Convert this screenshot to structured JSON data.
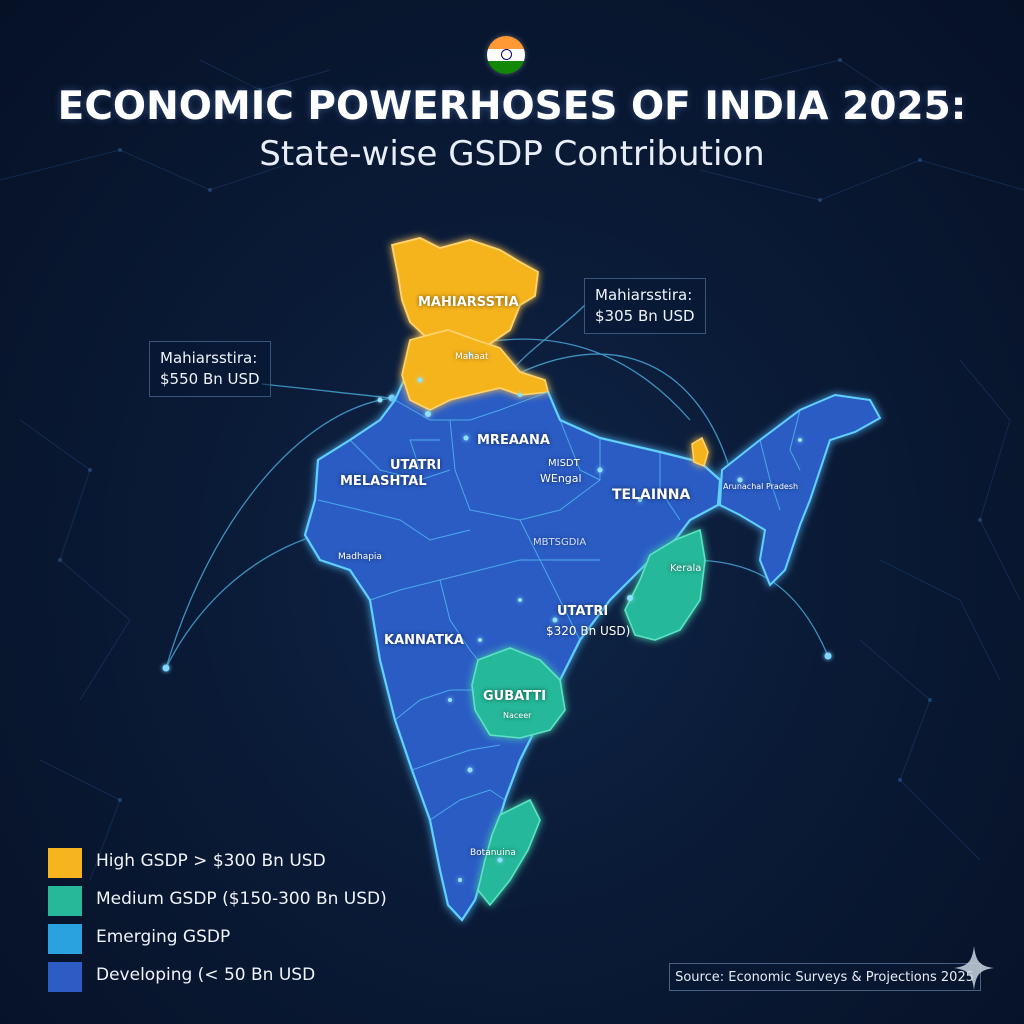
{
  "title": "ECONOMIC POWERHOSES OF INDIA 2025:",
  "subtitle": "State-wise GSDP Contribution",
  "colors": {
    "high": "#f6b41e",
    "medium": "#27b89a",
    "emerging": "#2aa2e0",
    "developing": "#2c5cc4",
    "background": "#0a1a36",
    "border_glow": "#58c8ff"
  },
  "icons": {
    "flag": "india-flag-icon",
    "sparkle": "sparkle-icon"
  },
  "map_labels": [
    {
      "id": "north",
      "text": "MAHIARSSTIA"
    },
    {
      "id": "north-small",
      "text": "Mahaat"
    },
    {
      "id": "central-north",
      "text": "MREAANA"
    },
    {
      "id": "utatri-west",
      "text": "UTATRI"
    },
    {
      "id": "melashtal",
      "text": "MELASHTAL"
    },
    {
      "id": "west-bengal-top",
      "text": "MISDT"
    },
    {
      "id": "west-bengal",
      "text": "WEngal"
    },
    {
      "id": "telanna",
      "text": "TELAINNA"
    },
    {
      "id": "northeast",
      "text": "Arunachal Pradesh"
    },
    {
      "id": "madhya",
      "text": "Madhapia"
    },
    {
      "id": "central",
      "text": "MBTSGDIA"
    },
    {
      "id": "kerala",
      "text": "Kerala"
    },
    {
      "id": "utatri-east",
      "text": "UTATRI"
    },
    {
      "id": "utatri-east-value",
      "text": "$320 Bn USD)"
    },
    {
      "id": "kannatka",
      "text": "KANNATKA"
    },
    {
      "id": "gubatti",
      "text": "GUBATTI"
    },
    {
      "id": "gubatti-sub",
      "text": "Naceer"
    },
    {
      "id": "south",
      "text": "Botanuina"
    }
  ],
  "callouts": [
    {
      "id": "left",
      "line1": "Mahiarsstira:",
      "line2": "$550 Bn USD"
    },
    {
      "id": "right",
      "line1": "Mahiarsstira:",
      "line2": "$305 Bn USD"
    }
  ],
  "legend": [
    {
      "key": "high",
      "label": "High GSDP > $300 Bn USD",
      "color": "#f6b41e"
    },
    {
      "key": "medium",
      "label": "Medium GSDP ($150-300 Bn USD)",
      "color": "#27b89a"
    },
    {
      "key": "emerging",
      "label": "Emerging GSDP",
      "color": "#2aa2e0"
    },
    {
      "key": "developing",
      "label": "Developing (< 50 Bn USD",
      "color": "#2c5cc4"
    }
  ],
  "source": "Source: Economic Surveys & Projections 2025"
}
